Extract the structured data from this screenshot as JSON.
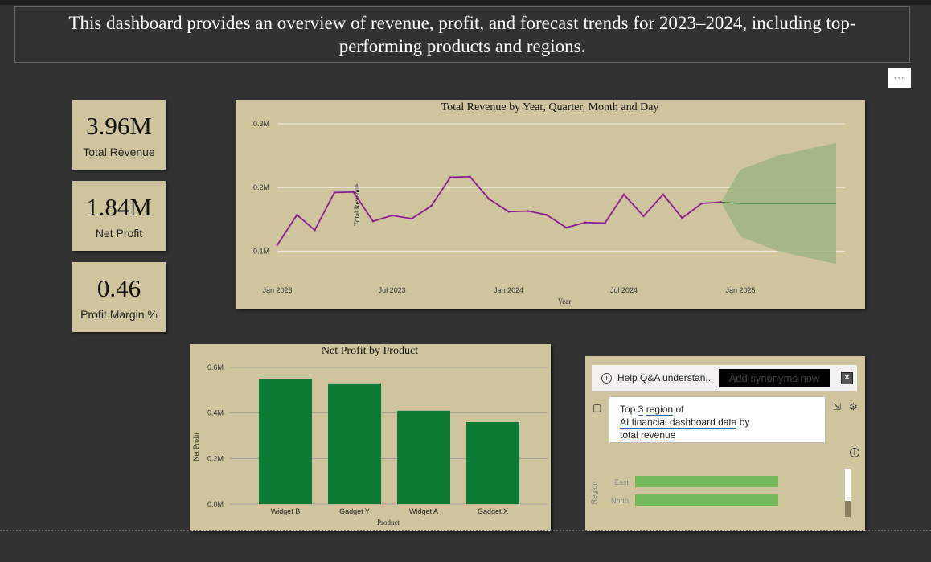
{
  "header": {
    "text": "This dashboard provides an overview of revenue, profit, and forecast trends for 2023–2024, including top-performing products and regions."
  },
  "more_options": {
    "label": "···"
  },
  "kpis": [
    {
      "value": "3.96M",
      "label": "Total Revenue"
    },
    {
      "value": "1.84M",
      "label": "Net Profit"
    },
    {
      "value": "0.46",
      "label": "Profit Margin %"
    }
  ],
  "revenue_chart": {
    "title": "Total Revenue by Year, Quarter, Month and Day",
    "xlabel": "Year",
    "ylabel": "Total Revenue",
    "y_ticks": [
      "0.3M",
      "0.2M",
      "0.1M"
    ],
    "x_ticks": [
      "Jan 2023",
      "Jul 2023",
      "Jan 2024",
      "Jul 2024",
      "Jan 2025"
    ]
  },
  "profit_chart": {
    "title": "Net Profit by Product",
    "xlabel": "Product",
    "ylabel": "Net Profit",
    "y_ticks": [
      "0.6M",
      "0.4M",
      "0.2M",
      "0.0M"
    ]
  },
  "qa": {
    "help_text": "Help Q&A understan...",
    "synonyms_button": "Add synonyms now",
    "close_label": "✕",
    "query": {
      "part1": "Top",
      "num": "3",
      "region": "region",
      "of": "of",
      "dataset": "AI financial dashboard data",
      "by": "by",
      "measure": "total revenue"
    },
    "axis_label": "Region",
    "regions": [
      "East",
      "North"
    ]
  },
  "chart_data": [
    {
      "type": "line",
      "title": "Total Revenue by Year, Quarter, Month and Day",
      "xlabel": "Year",
      "ylabel": "Total Revenue",
      "x": [
        "2023-01",
        "2023-02",
        "2023-03",
        "2023-04",
        "2023-05",
        "2023-06",
        "2023-07",
        "2023-08",
        "2023-09",
        "2023-10",
        "2023-11",
        "2023-12",
        "2024-01",
        "2024-02",
        "2024-03",
        "2024-04",
        "2024-05",
        "2024-06",
        "2024-07",
        "2024-08",
        "2024-09",
        "2024-10",
        "2024-11",
        "2024-12"
      ],
      "series": [
        {
          "color": "#8b1a96",
          "values": [
            0.11,
            0.157,
            0.133,
            0.192,
            0.193,
            0.147,
            0.156,
            0.151,
            0.171,
            0.216,
            0.217,
            0.182,
            0.162,
            0.163,
            0.157,
            0.137,
            0.145,
            0.144,
            0.189,
            0.155,
            0.189,
            0.152,
            0.175,
            0.177
          ]
        }
      ],
      "forecast": {
        "color": "#2e7d32",
        "x": [
          "2024-12",
          "2025-01",
          "2025-03",
          "2025-06"
        ],
        "values": [
          0.177,
          0.175,
          0.175,
          0.175
        ],
        "upper": [
          0.177,
          0.228,
          0.25,
          0.27
        ],
        "lower": [
          0.177,
          0.123,
          0.1,
          0.08
        ]
      },
      "x_ticks": [
        "Jan 2023",
        "Jul 2023",
        "Jan 2024",
        "Jul 2024",
        "Jan 2025"
      ],
      "ylim": [
        0.05,
        0.3
      ],
      "grid": true
    },
    {
      "type": "bar",
      "title": "Net Profit by Product",
      "xlabel": "Product",
      "ylabel": "Net Profit",
      "categories": [
        "Widget B",
        "Gadget Y",
        "Widget A",
        "Gadget X"
      ],
      "values": [
        0.55,
        0.53,
        0.41,
        0.36
      ],
      "color": "#0a7a35",
      "ylim": [
        0,
        0.6
      ],
      "grid": true
    },
    {
      "type": "bar",
      "orientation": "horizontal",
      "ylabel": "Region",
      "categories": [
        "East",
        "North"
      ],
      "values": [
        1,
        1
      ],
      "color": "#74b85c"
    }
  ]
}
